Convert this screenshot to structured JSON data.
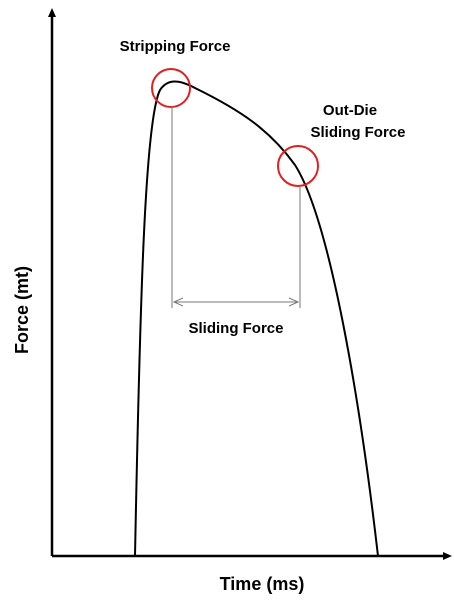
{
  "axes": {
    "y_label": "Force (mt)",
    "x_label": "Time (ms)"
  },
  "annotations": {
    "peak": "Stripping Force",
    "out_die": [
      "Out-Die",
      "Sliding Force"
    ],
    "span": "Sliding Force"
  }
}
